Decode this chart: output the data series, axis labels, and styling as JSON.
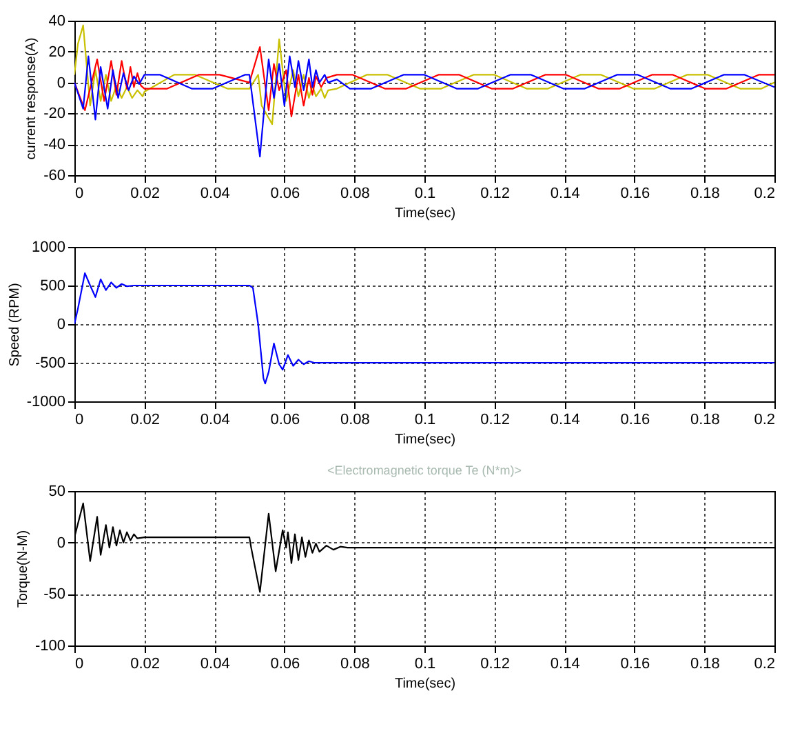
{
  "chart_data": [
    {
      "type": "line",
      "xlabel": "Time(sec)",
      "ylabel": "current response(A)",
      "xlim": [
        0,
        0.2
      ],
      "xticks": [
        0,
        0.02,
        0.04,
        0.06,
        0.08,
        0.1,
        0.12,
        0.14,
        0.16,
        0.18,
        0.2
      ],
      "ylim": [
        -60,
        40
      ],
      "yticks": [
        -60,
        -40,
        -20,
        0,
        20,
        40
      ],
      "grid": true,
      "series": [
        {
          "color": "#c8c000",
          "x": [
            0,
            0.001,
            0.0025,
            0.0045,
            0.006,
            0.0075,
            0.009,
            0.0105,
            0.012,
            0.0135,
            0.015,
            0.0165,
            0.018,
            0.0195,
            0.02,
            0.0285,
            0.0345,
            0.0437,
            0.05,
            0.0525,
            0.0535,
            0.0565,
            0.0585,
            0.0605,
            0.0625,
            0.064,
            0.0655,
            0.067,
            0.068,
            0.069,
            0.0705,
            0.0715,
            0.0725,
            0.075,
            0.0835,
            0.0895,
            0.0987,
            0.1048,
            0.114,
            0.12,
            0.1292,
            0.1353,
            0.1445,
            0.1505,
            0.1597,
            0.1658,
            0.175,
            0.181,
            0.1902,
            0.1963,
            0.2
          ],
          "values": [
            5,
            25,
            37,
            -15,
            8,
            -12,
            5,
            -12,
            -2,
            -10,
            -3,
            -10,
            -5,
            -9,
            -6,
            5,
            5,
            -4,
            -4,
            5,
            -15,
            -27,
            28,
            -12,
            8,
            -9,
            5,
            -10,
            -2,
            -9,
            -4,
            -10,
            -5,
            -4,
            5,
            5,
            -4,
            -4,
            5,
            5,
            -4,
            -4,
            5,
            5,
            -4,
            -4,
            5,
            5,
            -4,
            -4,
            0
          ]
        },
        {
          "color": "#ff0000",
          "x": [
            0,
            0.003,
            0.0065,
            0.0085,
            0.0105,
            0.012,
            0.0135,
            0.015,
            0.016,
            0.017,
            0.018,
            0.019,
            0.02,
            0.0265,
            0.0355,
            0.0415,
            0.05,
            0.053,
            0.0555,
            0.057,
            0.0585,
            0.0605,
            0.062,
            0.064,
            0.0655,
            0.067,
            0.068,
            0.069,
            0.0705,
            0.072,
            0.075,
            0.0795,
            0.0887,
            0.0948,
            0.104,
            0.11,
            0.1192,
            0.1253,
            0.1345,
            0.1405,
            0.1497,
            0.1558,
            0.165,
            0.171,
            0.1802,
            0.1863,
            0.1955,
            0.2
          ],
          "values": [
            0,
            -18,
            15,
            -12,
            14,
            -8,
            14,
            -4,
            10,
            -3,
            6,
            -2,
            -4,
            -4,
            5,
            5,
            0,
            23,
            -18,
            12,
            -5,
            8,
            -22,
            5,
            -15,
            3,
            -8,
            4,
            -3,
            3,
            5,
            5,
            -4,
            -4,
            5,
            5,
            -4,
            -4,
            5,
            5,
            -4,
            -4,
            5,
            5,
            -4,
            -4,
            5,
            5
          ]
        },
        {
          "color": "#0000ff",
          "x": [
            0,
            0.0025,
            0.004,
            0.006,
            0.0075,
            0.0095,
            0.011,
            0.0125,
            0.014,
            0.0155,
            0.017,
            0.0185,
            0.02,
            0.0245,
            0.0335,
            0.0395,
            0.0487,
            0.05,
            0.053,
            0.0555,
            0.057,
            0.0585,
            0.06,
            0.0615,
            0.063,
            0.064,
            0.0655,
            0.067,
            0.068,
            0.069,
            0.07,
            0.0715,
            0.0725,
            0.075,
            0.0787,
            0.0848,
            0.094,
            0.1,
            0.1092,
            0.1153,
            0.1245,
            0.1305,
            0.1397,
            0.1458,
            0.155,
            0.161,
            0.1702,
            0.1763,
            0.1855,
            0.1915,
            0.2
          ],
          "values": [
            0,
            -17,
            17,
            -24,
            10,
            -17,
            8,
            -10,
            6,
            -5,
            4,
            -1,
            5,
            5,
            -4,
            -4,
            5,
            5,
            -48,
            15,
            -10,
            12,
            -15,
            17,
            -3,
            14,
            -5,
            15,
            -3,
            8,
            0,
            5,
            0,
            2,
            -4,
            -4,
            5,
            5,
            -4,
            -4,
            5,
            5,
            -4,
            -4,
            5,
            5,
            -4,
            -4,
            5,
            5,
            -3
          ]
        }
      ]
    },
    {
      "type": "line",
      "xlabel": "Time(sec)",
      "ylabel": "Speed (RPM)",
      "xlim": [
        0,
        0.2
      ],
      "xticks": [
        0,
        0.02,
        0.04,
        0.06,
        0.08,
        0.1,
        0.12,
        0.14,
        0.16,
        0.18,
        0.2
      ],
      "ylim": [
        -1000,
        1000
      ],
      "yticks": [
        -1000,
        -500,
        0,
        500,
        1000
      ],
      "grid": true,
      "series": [
        {
          "color": "#0000ff",
          "x": [
            0,
            0.001,
            0.003,
            0.0045,
            0.006,
            0.0075,
            0.009,
            0.0105,
            0.012,
            0.0135,
            0.015,
            0.017,
            0.018,
            0.05,
            0.051,
            0.0525,
            0.054,
            0.0545,
            0.0555,
            0.057,
            0.0585,
            0.0595,
            0.061,
            0.0625,
            0.064,
            0.0655,
            0.067,
            0.0685,
            0.07,
            0.072,
            0.2
          ],
          "values": [
            0,
            200,
            660,
            500,
            350,
            580,
            440,
            540,
            470,
            520,
            490,
            500,
            500,
            500,
            470,
            0,
            -700,
            -770,
            -620,
            -250,
            -520,
            -590,
            -400,
            -540,
            -460,
            -520,
            -480,
            -500,
            -500,
            -500,
            -500
          ]
        }
      ]
    },
    {
      "type": "line",
      "title": "<Electromagnetic torque Te (N*m)>",
      "xlabel": "Time(sec)",
      "ylabel": "Torque(N-M)",
      "xlim": [
        0,
        0.2
      ],
      "xticks": [
        0,
        0.02,
        0.04,
        0.06,
        0.08,
        0.1,
        0.12,
        0.14,
        0.16,
        0.18,
        0.2
      ],
      "ylim": [
        -100,
        50
      ],
      "yticks": [
        -100,
        -50,
        0,
        50
      ],
      "grid": true,
      "series": [
        {
          "color": "#000000",
          "x": [
            0,
            0.0025,
            0.0045,
            0.0065,
            0.0075,
            0.009,
            0.01,
            0.011,
            0.012,
            0.013,
            0.014,
            0.015,
            0.016,
            0.017,
            0.018,
            0.02,
            0.05,
            0.0505,
            0.053,
            0.0555,
            0.0575,
            0.0595,
            0.0605,
            0.061,
            0.062,
            0.063,
            0.064,
            0.065,
            0.066,
            0.067,
            0.068,
            0.069,
            0.07,
            0.072,
            0.074,
            0.076,
            0.078,
            0.08,
            0.2
          ],
          "values": [
            5,
            38,
            -18,
            25,
            -12,
            17,
            -5,
            15,
            -3,
            12,
            0,
            10,
            2,
            8,
            4,
            5,
            5,
            -5,
            -48,
            28,
            -28,
            12,
            -5,
            10,
            -20,
            8,
            -17,
            5,
            -14,
            2,
            -10,
            -1,
            -9,
            -3,
            -7,
            -4,
            -5,
            -5,
            -5
          ]
        }
      ]
    }
  ]
}
